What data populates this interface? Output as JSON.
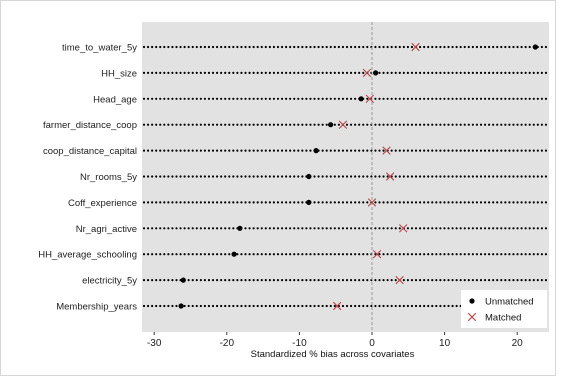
{
  "chart_data": {
    "type": "scatter",
    "xlabel": "Standardized % bias across covariates",
    "xlim": [
      -32,
      24
    ],
    "xticks": [
      "-30",
      "-20",
      "-10",
      "0",
      "10",
      "20"
    ],
    "xtick_values": [
      -30,
      -20,
      -10,
      0,
      10,
      20
    ],
    "reference_line": 0,
    "grid": false,
    "legend_position": "bottom-right",
    "categories": [
      "time_to_water_5y",
      "HH_size",
      "Head_age",
      "farmer_distance_coop",
      "coop_distance_capital",
      "Nr_rooms_5y",
      "Coff_experience",
      "Nr_agri_active",
      "HH_average_schooling",
      "electricity_5y",
      "Membership_years"
    ],
    "series": [
      {
        "name": "Unmatched",
        "marker": "dot",
        "color": "#000000",
        "values": [
          22.5,
          0.5,
          -1.5,
          -5.7,
          -7.7,
          -8.7,
          -8.7,
          -18.2,
          -19.0,
          -26.0,
          -26.3
        ]
      },
      {
        "name": "Matched",
        "marker": "x",
        "color": "#b8474d",
        "values": [
          6.0,
          -0.7,
          -0.3,
          -4.0,
          2.0,
          2.5,
          0.0,
          4.3,
          0.7,
          3.8,
          -4.8
        ]
      }
    ],
    "colors": {
      "panel": "#e2e2e2",
      "refline": "#9a9a9a",
      "dots": "#000000",
      "cross": "#b8474d"
    }
  }
}
